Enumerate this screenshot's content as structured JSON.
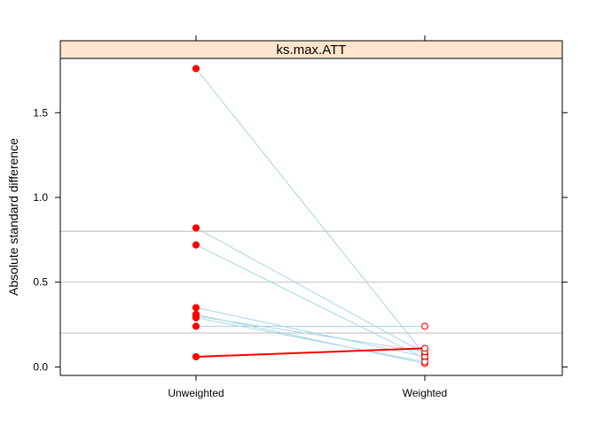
{
  "chart_data": {
    "type": "line",
    "title": "",
    "strip_label": "ks.max.ATT",
    "xlabel": "",
    "ylabel": "Absolute standard difference",
    "categories": [
      "Unweighted",
      "Weighted"
    ],
    "ylim": [
      -0.05,
      1.82
    ],
    "y_ticks": [
      0.0,
      0.5,
      1.0,
      1.5
    ],
    "y_tick_labels": [
      "0.0",
      "0.5",
      "1.0",
      "1.5"
    ],
    "reference_lines": [
      0.2,
      0.5,
      0.8
    ],
    "series": [
      {
        "values": [
          1.76,
          0.07
        ],
        "highlight": false
      },
      {
        "values": [
          0.82,
          0.08
        ],
        "highlight": false
      },
      {
        "values": [
          0.72,
          0.05
        ],
        "highlight": false
      },
      {
        "values": [
          0.35,
          0.06
        ],
        "highlight": false
      },
      {
        "values": [
          0.31,
          0.02
        ],
        "highlight": false
      },
      {
        "values": [
          0.3,
          0.09
        ],
        "highlight": false
      },
      {
        "values": [
          0.29,
          0.03
        ],
        "highlight": false
      },
      {
        "values": [
          0.24,
          0.24
        ],
        "highlight": false
      },
      {
        "values": [
          0.06,
          0.11
        ],
        "highlight": true
      }
    ],
    "colors": {
      "strip_bg": "#ffe5cc",
      "line": "#a6d5e6",
      "highlight_line": "#ff0000",
      "points": "#ff0000",
      "reference_line": "#c8c8c8",
      "frame": "#000000"
    }
  }
}
